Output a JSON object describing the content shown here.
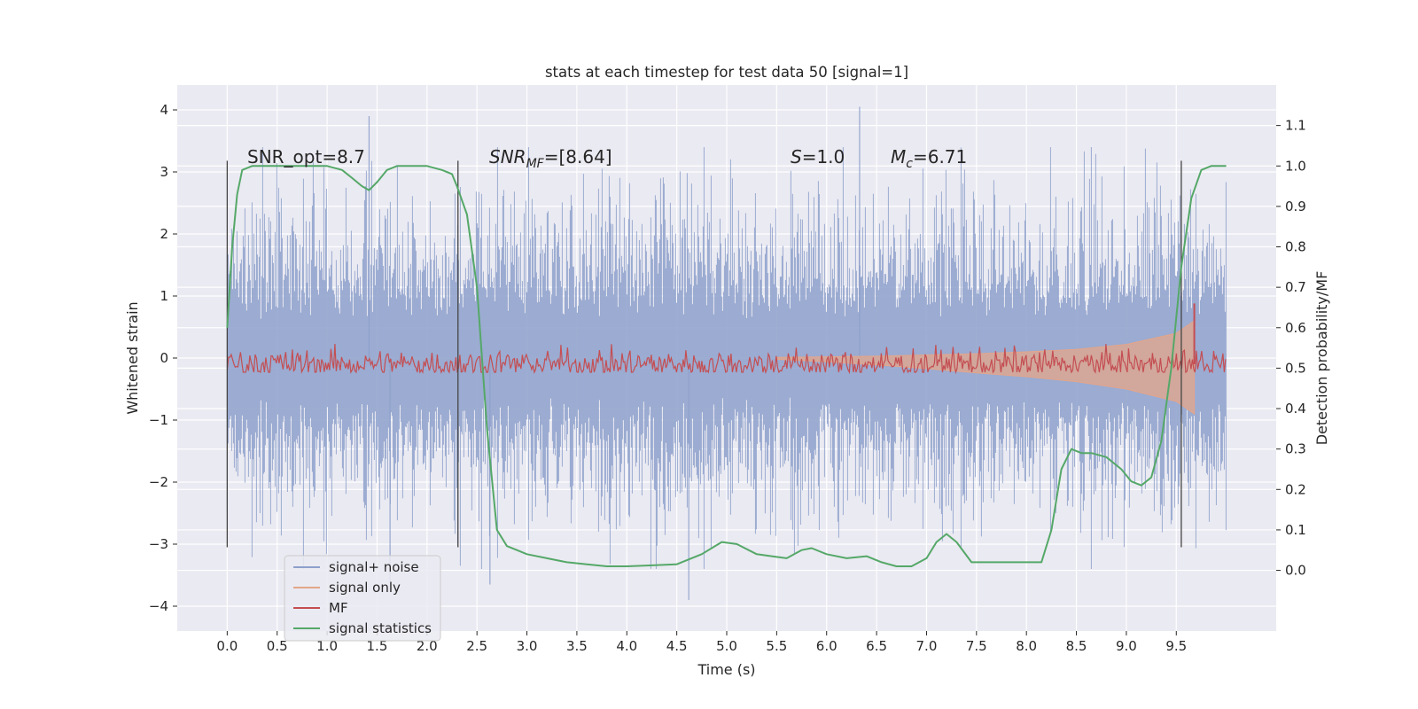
{
  "chart_data": {
    "type": "line",
    "title": "stats at each timestep for test data 50 [signal=1]",
    "xlabel": "Time (s)",
    "ylabel": "Whitened strain",
    "y2label": "Detection probability/MF",
    "xlim": [
      -0.5,
      10.5
    ],
    "ylim": [
      -4.4,
      4.4
    ],
    "y2lim": [
      -0.15,
      1.2
    ],
    "x_ticks": [
      "0.0",
      "0.5",
      "1.0",
      "1.5",
      "2.0",
      "2.5",
      "3.0",
      "3.5",
      "4.0",
      "4.5",
      "5.0",
      "5.5",
      "6.0",
      "6.5",
      "7.0",
      "7.5",
      "8.0",
      "8.5",
      "9.0",
      "9.5"
    ],
    "y_ticks": [
      "4",
      "3",
      "2",
      "1",
      "0",
      "−1",
      "−2",
      "−3",
      "−4"
    ],
    "y2_ticks": [
      "1.1",
      "1.0",
      "0.9",
      "0.8",
      "0.7",
      "0.6",
      "0.5",
      "0.4",
      "0.3",
      "0.2",
      "0.1",
      "0.0"
    ],
    "grid": true,
    "legend_position": "lower-left",
    "annotations": {
      "snr_opt": "SNR_opt=8.7",
      "snr_mf_symbol": "SNR",
      "snr_mf_sub": "MF",
      "snr_mf_value": "=[8.64]",
      "s_symbol": "S",
      "s_value": "=1.0",
      "mc_symbol": "M",
      "mc_sub": "c",
      "mc_value": "=6.71"
    },
    "segment_markers_x": [
      0.0,
      2.31,
      9.55
    ],
    "series": [
      {
        "name": "signal+ noise",
        "color": "#8da0cb",
        "x_range": [
          0.0,
          10.0
        ],
        "typical_amplitude": 2.5,
        "extremes": [
          {
            "x": 1.42,
            "y": 3.9
          },
          {
            "x": 6.33,
            "y": 4.05
          },
          {
            "x": 4.62,
            "y": -3.9
          },
          {
            "x": 1.63,
            "y": -3.6
          },
          {
            "x": 2.63,
            "y": -3.65
          }
        ]
      },
      {
        "name": "signal only",
        "color": "#e4a58a",
        "x": [
          5.5,
          6.0,
          6.5,
          7.0,
          7.5,
          8.0,
          8.5,
          9.0,
          9.5,
          9.68
        ],
        "upper": [
          0.01,
          0.02,
          0.03,
          0.05,
          0.07,
          0.1,
          0.14,
          0.22,
          0.4,
          0.6
        ],
        "lower": [
          -0.02,
          -0.06,
          -0.11,
          -0.17,
          -0.24,
          -0.3,
          -0.38,
          -0.5,
          -0.7,
          -0.9
        ]
      },
      {
        "name": "MF",
        "color": "#c44e52",
        "axis": "right",
        "x_range": [
          0.0,
          10.0
        ],
        "baseline": 0.51,
        "band": [
          0.49,
          0.56
        ],
        "peak": {
          "x": 9.68,
          "y": 0.66
        }
      },
      {
        "name": "signal statistics",
        "color": "#55a868",
        "axis": "right",
        "x": [
          0.0,
          0.05,
          0.1,
          0.15,
          0.25,
          0.4,
          0.6,
          0.8,
          1.0,
          1.15,
          1.25,
          1.35,
          1.42,
          1.5,
          1.6,
          1.7,
          1.85,
          2.0,
          2.15,
          2.25,
          2.3,
          2.4,
          2.5,
          2.6,
          2.7,
          2.8,
          2.9,
          3.0,
          3.2,
          3.4,
          3.6,
          3.8,
          4.0,
          4.2,
          4.5,
          4.75,
          4.95,
          5.1,
          5.3,
          5.45,
          5.6,
          5.75,
          5.85,
          6.0,
          6.2,
          6.4,
          6.55,
          6.7,
          6.85,
          7.0,
          7.1,
          7.2,
          7.3,
          7.45,
          7.6,
          7.8,
          8.0,
          8.15,
          8.25,
          8.35,
          8.45,
          8.55,
          8.65,
          8.8,
          8.95,
          9.05,
          9.15,
          9.25,
          9.35,
          9.45,
          9.55,
          9.65,
          9.75,
          9.85,
          10.0
        ],
        "y": [
          0.6,
          0.8,
          0.93,
          0.99,
          1.0,
          1.0,
          1.0,
          1.0,
          1.0,
          0.99,
          0.97,
          0.95,
          0.94,
          0.96,
          0.99,
          1.0,
          1.0,
          1.0,
          0.99,
          0.98,
          0.95,
          0.88,
          0.7,
          0.35,
          0.1,
          0.06,
          0.05,
          0.04,
          0.03,
          0.02,
          0.015,
          0.01,
          0.01,
          0.012,
          0.015,
          0.04,
          0.07,
          0.065,
          0.04,
          0.035,
          0.03,
          0.05,
          0.055,
          0.04,
          0.03,
          0.035,
          0.02,
          0.01,
          0.01,
          0.03,
          0.07,
          0.09,
          0.07,
          0.02,
          0.02,
          0.02,
          0.02,
          0.02,
          0.1,
          0.25,
          0.3,
          0.29,
          0.29,
          0.28,
          0.25,
          0.22,
          0.21,
          0.23,
          0.32,
          0.5,
          0.75,
          0.92,
          0.99,
          1.0,
          1.0
        ]
      }
    ]
  }
}
